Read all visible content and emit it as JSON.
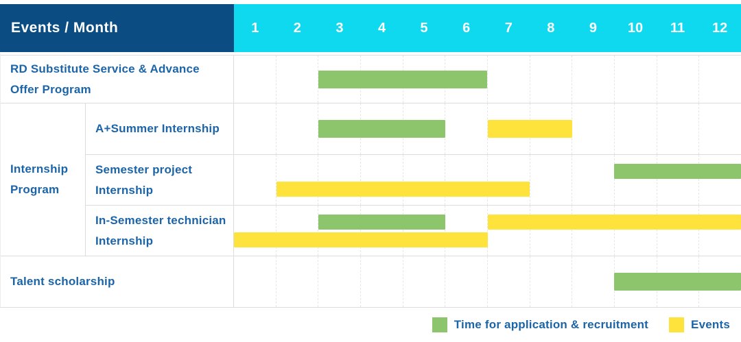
{
  "header": {
    "label": "Events / Month"
  },
  "colors": {
    "header_bg": "#0b4c82",
    "month_header_bg": "#0fd9ee",
    "text_blue": "#1c64a8",
    "application_green": "#8cc56b",
    "events_yellow": "#ffe33d",
    "grid_line": "#dcdcdc"
  },
  "chart_data": {
    "type": "bar",
    "subtype": "gantt-timeline",
    "x_axis": {
      "unit": "month",
      "range": [
        1,
        12
      ]
    },
    "months": [
      "1",
      "2",
      "3",
      "4",
      "5",
      "6",
      "7",
      "8",
      "9",
      "10",
      "11",
      "12"
    ],
    "legend": [
      {
        "key": "application",
        "label": "Time for application & recruitment",
        "color": "#8cc56b"
      },
      {
        "key": "events",
        "label": "Events",
        "color": "#ffe33d"
      }
    ],
    "legend_position": "bottom-right",
    "rows": [
      {
        "group": null,
        "label": "RD Substitute Service & Advance Offer Program",
        "bars": [
          {
            "type": "application",
            "start": 3,
            "end": 6,
            "lane": "center"
          }
        ]
      },
      {
        "group": "Internship Program",
        "label": "A+Summer Internship",
        "bars": [
          {
            "type": "application",
            "start": 3,
            "end": 5,
            "lane": "center"
          },
          {
            "type": "events",
            "start": 7,
            "end": 8,
            "lane": "center"
          }
        ]
      },
      {
        "group": "Internship Program",
        "label": "Semester project Internship",
        "bars": [
          {
            "type": "application",
            "start": 10,
            "end": 12,
            "lane": "top"
          },
          {
            "type": "events",
            "start": 2,
            "end": 7,
            "lane": "bottom"
          }
        ]
      },
      {
        "group": "Internship Program",
        "label": "In-Semester technician Internship",
        "bars": [
          {
            "type": "application",
            "start": 3,
            "end": 5,
            "lane": "top"
          },
          {
            "type": "events",
            "start": 7,
            "end": 12,
            "lane": "top"
          },
          {
            "type": "events",
            "start": 1,
            "end": 6,
            "lane": "bottom"
          }
        ]
      },
      {
        "group": null,
        "label": "Talent scholarship",
        "bars": [
          {
            "type": "application",
            "start": 10,
            "end": 12,
            "lane": "center"
          }
        ]
      }
    ]
  }
}
